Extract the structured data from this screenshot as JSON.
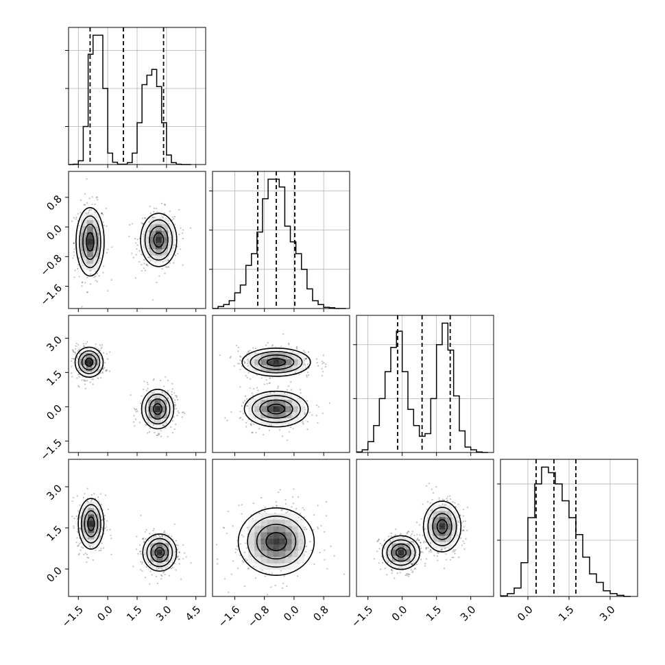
{
  "chart_data": {
    "type": "corner",
    "n_params": 4,
    "grid": "on",
    "quantiles": [
      0.16,
      0.5,
      0.84
    ],
    "params": [
      {
        "range": [
          -2.0,
          5.0
        ],
        "ticks": [
          -1.5,
          0.0,
          1.5,
          3.0,
          4.5
        ],
        "tick_labels": [
          "−1.5",
          "0.0",
          "1.5",
          "3.0",
          "4.5"
        ]
      },
      {
        "range": [
          -2.2,
          1.5
        ],
        "ticks": [
          -1.6,
          -0.8,
          0.0,
          0.8
        ],
        "tick_labels": [
          "−1.6",
          "−0.8",
          "0.0",
          "0.8"
        ]
      },
      {
        "range": [
          -2.0,
          4.0
        ],
        "ticks": [
          -1.5,
          0.0,
          1.5,
          3.0
        ],
        "tick_labels": [
          "−1.5",
          "0.0",
          "1.5",
          "3.0"
        ]
      },
      {
        "range": [
          -1.0,
          4.0
        ],
        "ticks": [
          0.0,
          1.5,
          3.0
        ],
        "tick_labels": [
          "0.0",
          "1.5",
          "3.0"
        ]
      }
    ],
    "diagonal_histograms": [
      {
        "param": 0,
        "bin_edges": [
          -2.0,
          -1.75,
          -1.5,
          -1.25,
          -1.0,
          -0.75,
          -0.5,
          -0.25,
          0.0,
          0.25,
          0.5,
          0.75,
          1.0,
          1.25,
          1.5,
          1.75,
          2.0,
          2.25,
          2.5,
          2.75,
          3.0,
          3.25,
          3.5,
          3.75,
          4.0,
          4.25
        ],
        "counts": [
          0,
          1,
          10,
          100,
          290,
          340,
          340,
          200,
          30,
          6,
          1,
          1,
          5,
          30,
          110,
          210,
          235,
          250,
          205,
          110,
          25,
          5,
          1,
          0,
          0
        ],
        "quantile_lines": [
          -0.9,
          0.8,
          2.85
        ]
      },
      {
        "param": 1,
        "bin_edges": [
          -2.2,
          -2.05,
          -1.9,
          -1.75,
          -1.6,
          -1.45,
          -1.3,
          -1.15,
          -1.0,
          -0.85,
          -0.7,
          -0.55,
          -0.4,
          -0.25,
          -0.1,
          0.05,
          0.2,
          0.35,
          0.5,
          0.65,
          0.8,
          0.95,
          1.1,
          1.25,
          1.4
        ],
        "counts": [
          0,
          5,
          10,
          20,
          40,
          60,
          110,
          140,
          195,
          280,
          330,
          330,
          310,
          210,
          170,
          140,
          100,
          50,
          20,
          10,
          3,
          2,
          0,
          0
        ],
        "quantile_lines": [
          -0.98,
          -0.48,
          0.02
        ]
      },
      {
        "param": 2,
        "bin_edges": [
          -2.0,
          -1.75,
          -1.5,
          -1.25,
          -1.0,
          -0.75,
          -0.5,
          -0.25,
          0.0,
          0.25,
          0.5,
          0.75,
          1.0,
          1.25,
          1.5,
          1.75,
          2.0,
          2.25,
          2.5,
          2.75,
          3.0,
          3.25,
          3.5,
          3.75
        ],
        "counts": [
          1,
          5,
          20,
          50,
          100,
          150,
          195,
          225,
          150,
          80,
          50,
          30,
          35,
          100,
          200,
          240,
          190,
          105,
          40,
          10,
          5,
          1,
          0
        ],
        "quantile_lines": [
          -0.2,
          0.87,
          2.1
        ]
      },
      {
        "param": 3,
        "bin_edges": [
          -1.0,
          -0.75,
          -0.5,
          -0.25,
          0.0,
          0.25,
          0.5,
          0.75,
          1.0,
          1.25,
          1.5,
          1.75,
          2.0,
          2.25,
          2.5,
          2.75,
          3.0,
          3.25,
          3.5,
          3.75
        ],
        "counts": [
          1,
          5,
          15,
          60,
          140,
          200,
          230,
          220,
          200,
          170,
          140,
          110,
          70,
          40,
          25,
          10,
          5,
          2,
          0
        ],
        "quantile_lines": [
          0.3,
          0.95,
          1.75
        ]
      }
    ],
    "pair_panels": [
      {
        "x": 0,
        "y": 1,
        "clusters": [
          {
            "mean": [
              -0.9,
              -0.4
            ],
            "std": [
              0.35,
              0.45
            ]
          },
          {
            "mean": [
              2.6,
              -0.35
            ],
            "std": [
              0.45,
              0.35
            ]
          }
        ]
      },
      {
        "x": 0,
        "y": 2,
        "clusters": [
          {
            "mean": [
              -0.95,
              1.95
            ],
            "std": [
              0.35,
              0.32
            ]
          },
          {
            "mean": [
              2.55,
              -0.1
            ],
            "std": [
              0.4,
              0.42
            ]
          }
        ]
      },
      {
        "x": 0,
        "y": 3,
        "clusters": [
          {
            "mean": [
              -0.85,
              1.65
            ],
            "std": [
              0.32,
              0.45
            ]
          },
          {
            "mean": [
              2.65,
              0.6
            ],
            "std": [
              0.42,
              0.33
            ]
          }
        ]
      },
      {
        "x": 1,
        "y": 2,
        "clusters": [
          {
            "mean": [
              -0.48,
              1.95
            ],
            "std": [
              0.45,
              0.3
            ]
          },
          {
            "mean": [
              -0.48,
              -0.1
            ],
            "std": [
              0.42,
              0.38
            ]
          }
        ]
      },
      {
        "x": 1,
        "y": 3,
        "clusters": [
          {
            "mean": [
              -0.48,
              1.0
            ],
            "std": [
              0.5,
              0.6
            ]
          }
        ]
      },
      {
        "x": 2,
        "y": 3,
        "clusters": [
          {
            "mean": [
              -0.05,
              0.6
            ],
            "std": [
              0.4,
              0.3
            ]
          },
          {
            "mean": [
              1.75,
              1.55
            ],
            "std": [
              0.4,
              0.45
            ]
          }
        ]
      }
    ]
  }
}
